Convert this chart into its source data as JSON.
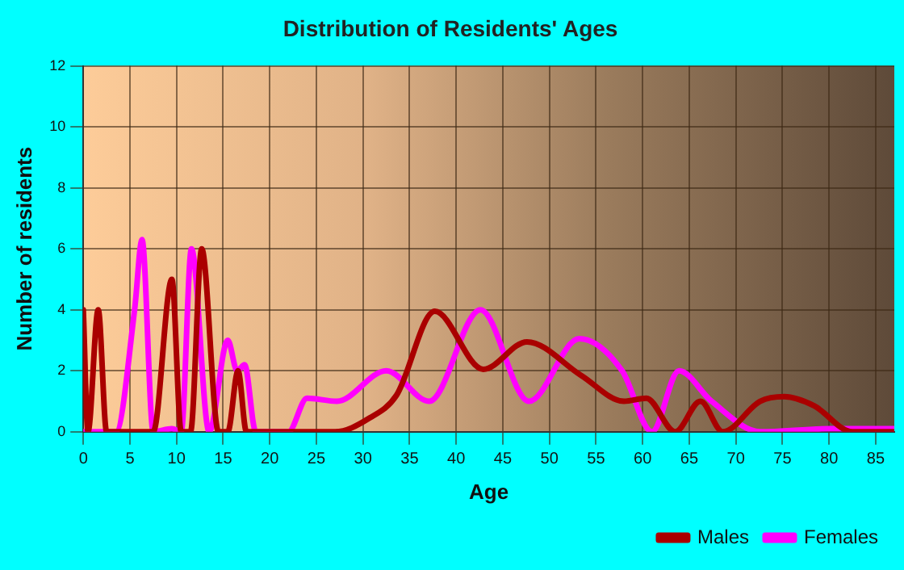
{
  "chart_data": {
    "type": "line",
    "title": "Distribution of Residents' Ages",
    "xlabel": "Age",
    "ylabel": "Number of residents",
    "xlim": [
      0,
      87
    ],
    "xticks": [
      0,
      5,
      10,
      15,
      20,
      25,
      30,
      35,
      40,
      45,
      50,
      55,
      60,
      65,
      70,
      75,
      80,
      85
    ],
    "ylim": [
      0,
      12
    ],
    "yticks": [
      0,
      2,
      4,
      6,
      8,
      10,
      12
    ],
    "grid": true,
    "legend": "bottom right",
    "marker": "none",
    "line_style": "solid",
    "series": [
      {
        "name": "Males",
        "color": "#aa0000",
        "x": [
          0,
          0.5,
          1.6,
          2.5,
          7.5,
          9.5,
          10.5,
          11.5,
          12.7,
          14.5,
          15.5,
          16.6,
          17.5,
          20,
          25,
          27,
          30.7,
          33.6,
          37.7,
          42.9,
          47.6,
          53.4,
          58,
          60.4,
          63.5,
          66.2,
          68.6,
          72.6,
          75.2,
          78.4,
          82.5,
          87
        ],
        "values": [
          4,
          0,
          4,
          0,
          0,
          5,
          0,
          0,
          6,
          0,
          0,
          2,
          0,
          0,
          0,
          0,
          0.45,
          1.2,
          3.95,
          2.05,
          2.95,
          1.85,
          1,
          1.1,
          0,
          1,
          0,
          1,
          1.15,
          0.85,
          0,
          0
        ]
      },
      {
        "name": "Females",
        "color": "#ff00ff",
        "x": [
          0,
          3.5,
          5.5,
          6.3,
          7.5,
          9.5,
          10.5,
          11.6,
          13.5,
          15.5,
          16.5,
          17.3,
          18.5,
          22,
          24,
          27.2,
          32.5,
          37.1,
          42.6,
          47.8,
          53.2,
          57.8,
          61,
          63.9,
          67.4,
          72.6,
          80,
          87
        ],
        "values": [
          0,
          0,
          4,
          6.3,
          0,
          0.1,
          0,
          6,
          0,
          3,
          2,
          2.2,
          0,
          0,
          1.1,
          1,
          2,
          1,
          4,
          1,
          3.05,
          2,
          0,
          2,
          1,
          0,
          0.1,
          0.1
        ]
      }
    ]
  }
}
